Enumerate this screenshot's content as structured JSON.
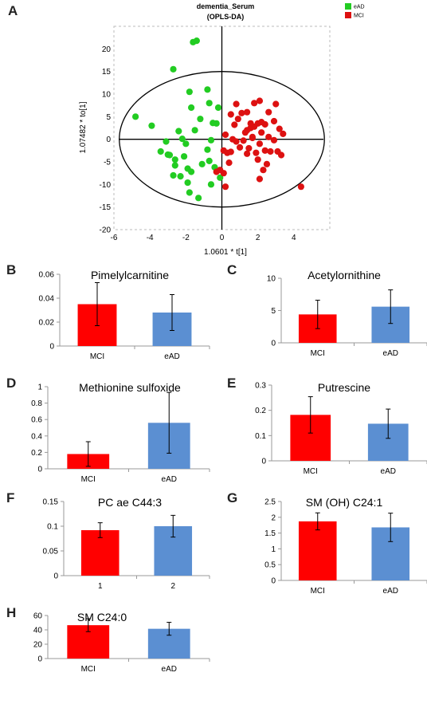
{
  "chart_data": [
    {
      "id": "A",
      "type": "scatter",
      "title": "dementia_Serum",
      "subtitle": "(OPLS-DA)",
      "xlabel": "1.0601 * t[1]",
      "ylabel": "1.07482 * to[1]",
      "xlim": [
        -6,
        6
      ],
      "ylim": [
        -20,
        25
      ],
      "xticks": [
        -6,
        -4,
        -2,
        0,
        2,
        4
      ],
      "yticks": [
        -20,
        -15,
        -10,
        -5,
        0,
        5,
        10,
        15,
        20
      ],
      "legend_position": "top-right",
      "ellipse": {
        "rx": 5.7,
        "ry": 15
      },
      "series": [
        {
          "name": "eAD",
          "color": "#22cc22",
          "points": [
            [
              -1.6,
              21.5
            ],
            [
              -1.4,
              21.8
            ],
            [
              -2.7,
              15.5
            ],
            [
              -4.8,
              5
            ],
            [
              -3.9,
              3
            ],
            [
              -3.4,
              -2.7
            ],
            [
              -3.1,
              -0.5
            ],
            [
              -3.0,
              -3.4
            ],
            [
              -2.6,
              -4.5
            ],
            [
              -2.6,
              -5.8
            ],
            [
              -2.7,
              -8
            ],
            [
              -2.3,
              -8.2
            ],
            [
              -2.1,
              -3.8
            ],
            [
              -2.0,
              -1
            ],
            [
              -1.9,
              -6.5
            ],
            [
              -1.7,
              -7.2
            ],
            [
              -1.9,
              -9.6
            ],
            [
              -1.8,
              -11.8
            ],
            [
              -1.3,
              -13
            ],
            [
              -1.1,
              -5.5
            ],
            [
              -1.5,
              2
            ],
            [
              -1.2,
              4.5
            ],
            [
              -0.8,
              -2.3
            ],
            [
              -0.7,
              -4.8
            ],
            [
              -0.4,
              -6.2
            ],
            [
              -0.1,
              -8.5
            ],
            [
              -0.6,
              -10
            ],
            [
              -0.3,
              3.5
            ],
            [
              -0.7,
              8
            ],
            [
              -0.2,
              7
            ],
            [
              -0.6,
              -0.2
            ],
            [
              -2.4,
              1.8
            ],
            [
              -1.7,
              7
            ],
            [
              -0.8,
              11
            ],
            [
              -1.8,
              10.5
            ],
            [
              -2.2,
              0.1
            ],
            [
              -0.5,
              3.6
            ],
            [
              -2.9,
              -3.5
            ]
          ]
        },
        {
          "name": "MCI",
          "color": "#dd1111",
          "points": [
            [
              0.1,
              -7.5
            ],
            [
              0.2,
              -10.5
            ],
            [
              0.1,
              -2.5
            ],
            [
              0.3,
              -3
            ],
            [
              0.4,
              -5.2
            ],
            [
              0.5,
              -2.8
            ],
            [
              0.2,
              1
            ],
            [
              0.6,
              0
            ],
            [
              0.7,
              3.2
            ],
            [
              0.8,
              -0.5
            ],
            [
              1.0,
              -1.8
            ],
            [
              1.2,
              -0.3
            ],
            [
              1.3,
              1.5
            ],
            [
              1.4,
              -3.2
            ],
            [
              1.5,
              -2
            ],
            [
              1.6,
              2.5
            ],
            [
              1.7,
              0.5
            ],
            [
              1.9,
              -3
            ],
            [
              2.0,
              -4.5
            ],
            [
              2.1,
              -1
            ],
            [
              2.2,
              1.5
            ],
            [
              2.4,
              -2.5
            ],
            [
              2.5,
              -5.5
            ],
            [
              2.6,
              0.5
            ],
            [
              2.7,
              -2.7
            ],
            [
              2.9,
              -0.2
            ],
            [
              3.1,
              -2.7
            ],
            [
              3.3,
              -3.5
            ],
            [
              2.3,
              -6.8
            ],
            [
              2.1,
              -8.8
            ],
            [
              4.4,
              -10.5
            ],
            [
              0.5,
              5.5
            ],
            [
              0.8,
              7.8
            ],
            [
              1.1,
              5.8
            ],
            [
              1.4,
              6
            ],
            [
              1.8,
              8
            ],
            [
              2.1,
              8.5
            ],
            [
              2.6,
              6
            ],
            [
              2.9,
              4
            ],
            [
              3.2,
              2.3
            ],
            [
              3.4,
              1.2
            ],
            [
              2.4,
              3.3
            ],
            [
              2.2,
              3.8
            ],
            [
              2.0,
              3.5
            ],
            [
              1.8,
              2.8
            ],
            [
              1.6,
              3.5
            ],
            [
              1.4,
              2
            ],
            [
              -0.3,
              -7.2
            ],
            [
              -0.1,
              -6.8
            ],
            [
              3.0,
              7.8
            ],
            [
              1.7,
              0.3
            ],
            [
              0.9,
              4.5
            ]
          ]
        }
      ]
    },
    {
      "id": "B",
      "type": "bar",
      "title": "Pimelylcarnitine",
      "categories": [
        "MCI",
        "eAD"
      ],
      "values": [
        0.035,
        0.028
      ],
      "errors": [
        0.018,
        0.015
      ],
      "colors": [
        "#ff0000",
        "#5b8fd2"
      ],
      "ylim": [
        0,
        0.06
      ],
      "yticks": [
        "0",
        "0.02",
        "0.04",
        "0.06"
      ]
    },
    {
      "id": "C",
      "type": "bar",
      "title": "Acetylornithine",
      "categories": [
        "MCI",
        "eAD"
      ],
      "values": [
        4.4,
        5.6
      ],
      "errors": [
        2.2,
        2.6
      ],
      "colors": [
        "#ff0000",
        "#5b8fd2"
      ],
      "ylim": [
        0,
        10
      ],
      "yticks": [
        "0",
        "5",
        "10"
      ]
    },
    {
      "id": "D",
      "type": "bar",
      "title": "Methionine sulfoxide",
      "categories": [
        "MCI",
        "eAD"
      ],
      "values": [
        0.18,
        0.56
      ],
      "errors": [
        0.15,
        0.37
      ],
      "colors": [
        "#ff0000",
        "#5b8fd2"
      ],
      "ylim": [
        0,
        1
      ],
      "yticks": [
        "0",
        "0.2",
        "0.4",
        "0.6",
        "0.8",
        "1"
      ]
    },
    {
      "id": "E",
      "type": "bar",
      "title": "Putrescine",
      "categories": [
        "MCI",
        "eAD"
      ],
      "values": [
        0.182,
        0.147
      ],
      "errors": [
        0.072,
        0.058
      ],
      "colors": [
        "#ff0000",
        "#5b8fd2"
      ],
      "ylim": [
        0,
        0.3
      ],
      "yticks": [
        "0",
        "0.1",
        "0.2",
        "0.3"
      ]
    },
    {
      "id": "F",
      "type": "bar",
      "title": "PC ae C44:3",
      "categories": [
        "1",
        "2"
      ],
      "values": [
        0.092,
        0.1
      ],
      "errors": [
        0.015,
        0.022
      ],
      "colors": [
        "#ff0000",
        "#5b8fd2"
      ],
      "ylim": [
        0,
        0.15
      ],
      "yticks": [
        "0",
        "0.05",
        "0.1",
        "0.15"
      ]
    },
    {
      "id": "G",
      "type": "bar",
      "title": "SM (OH)  C24:1",
      "categories": [
        "MCI",
        "eAD"
      ],
      "values": [
        1.87,
        1.68
      ],
      "errors": [
        0.27,
        0.45
      ],
      "colors": [
        "#ff0000",
        "#5b8fd2"
      ],
      "ylim": [
        0,
        2.5
      ],
      "yticks": [
        "0",
        "0.5",
        "1",
        "1.5",
        "2",
        "2.5"
      ]
    },
    {
      "id": "H",
      "type": "bar",
      "title": "SM C24:0",
      "categories": [
        "MCI",
        "eAD"
      ],
      "values": [
        46.5,
        41.5
      ],
      "errors": [
        9,
        9
      ],
      "colors": [
        "#ff0000",
        "#5b8fd2"
      ],
      "ylim": [
        0,
        60
      ],
      "yticks": [
        "0",
        "20",
        "40",
        "60"
      ]
    }
  ]
}
